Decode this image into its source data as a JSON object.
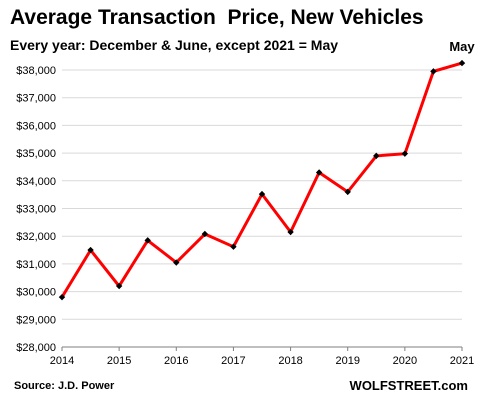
{
  "chart_data": {
    "type": "line",
    "title": "Average Transaction  Price, New Vehicles",
    "subtitle": "Every year: December & June, except 2021 = May",
    "source": "Source: J.D. Power",
    "brand": "WOLFSTREET.com",
    "ylim": [
      28000,
      38000
    ],
    "yticks": [
      "$28,000",
      "$29,000",
      "$30,000",
      "$31,000",
      "$32,000",
      "$33,000",
      "$34,000",
      "$35,000",
      "$36,000",
      "$37,000",
      "$38,000"
    ],
    "xlim": [
      2014,
      2021
    ],
    "xticks": [
      "2014",
      "2015",
      "2016",
      "2017",
      "2018",
      "2019",
      "2020",
      "2021"
    ],
    "series": [
      {
        "color": "#ff0000",
        "points": [
          {
            "x": 2014.0,
            "y": 29800
          },
          {
            "x": 2014.5,
            "y": 31500
          },
          {
            "x": 2015.0,
            "y": 30200
          },
          {
            "x": 2015.5,
            "y": 31850
          },
          {
            "x": 2016.0,
            "y": 31050
          },
          {
            "x": 2016.5,
            "y": 32080
          },
          {
            "x": 2017.0,
            "y": 31620
          },
          {
            "x": 2017.5,
            "y": 33520
          },
          {
            "x": 2018.0,
            "y": 32150
          },
          {
            "x": 2018.5,
            "y": 34300
          },
          {
            "x": 2019.0,
            "y": 33600
          },
          {
            "x": 2019.5,
            "y": 34900
          },
          {
            "x": 2020.0,
            "y": 34980
          },
          {
            "x": 2020.5,
            "y": 37950
          },
          {
            "x": 2021.0,
            "y": 38250
          }
        ]
      }
    ],
    "annotation": "May",
    "grid": true
  }
}
